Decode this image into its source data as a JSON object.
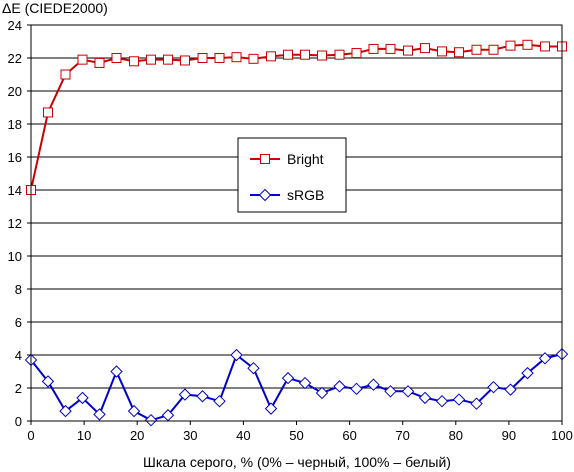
{
  "chart_data": {
    "type": "line",
    "title": "",
    "ylabel": "ΔE (CIEDE2000)",
    "xlabel": "Шкала серого, % (0% – черный, 100% – белый)",
    "xlim": [
      0,
      100
    ],
    "ylim": [
      0,
      24
    ],
    "xticks": [
      "0",
      "10",
      "20",
      "30",
      "40",
      "50",
      "60",
      "70",
      "80",
      "90",
      "100"
    ],
    "yticks": [
      "0",
      "2",
      "4",
      "6",
      "8",
      "10",
      "12",
      "14",
      "16",
      "18",
      "20",
      "22",
      "24"
    ],
    "grid": "horizontal",
    "legend_position": "center",
    "x": [
      0,
      3.2,
      6.5,
      9.7,
      12.9,
      16.1,
      19.4,
      22.6,
      25.8,
      29.0,
      32.3,
      35.5,
      38.7,
      41.9,
      45.2,
      48.4,
      51.6,
      54.8,
      58.1,
      61.3,
      64.5,
      67.7,
      71.0,
      74.2,
      77.4,
      80.6,
      83.9,
      87.1,
      90.3,
      93.5,
      96.8,
      100
    ],
    "series": [
      {
        "name": "Bright",
        "color": "#cc0000",
        "marker": "square",
        "values": [
          14.0,
          18.7,
          21.0,
          21.9,
          21.7,
          22.0,
          21.8,
          21.9,
          21.9,
          21.85,
          22.0,
          22.0,
          22.05,
          21.95,
          22.1,
          22.2,
          22.2,
          22.15,
          22.2,
          22.3,
          22.55,
          22.55,
          22.45,
          22.6,
          22.4,
          22.35,
          22.5,
          22.5,
          22.75,
          22.8,
          22.7,
          22.7
        ]
      },
      {
        "name": "sRGB",
        "color": "#0000cc",
        "marker": "diamond",
        "values": [
          3.7,
          2.4,
          0.6,
          1.4,
          0.4,
          3.0,
          0.6,
          0.05,
          0.35,
          1.6,
          1.5,
          1.2,
          4.0,
          3.2,
          0.75,
          2.6,
          2.3,
          1.7,
          2.1,
          1.95,
          2.2,
          1.8,
          1.8,
          1.4,
          1.2,
          1.3,
          1.05,
          2.05,
          1.9,
          2.9,
          3.8,
          4.05
        ]
      }
    ]
  }
}
